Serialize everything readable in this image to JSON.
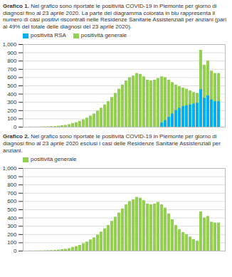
{
  "chart_data": [
    {
      "type": "bar",
      "title": "Grafico 1.",
      "subtitle": "Nel grafico sono riportate le positività COVID-19 in Piemonte per giorno di diagnosi fino al 23 aprile 2020. La parte del diagramma colorata in blu rappresenta il numero di casi positivi riscontrati nelle Residenze Sanitarie Assistenziali per anziani (pari al 49% del totale delle diagnosi del 23 aprile 2020).",
      "categories": [
        null,
        null,
        null,
        null,
        null,
        null,
        null,
        null,
        null,
        null,
        null,
        null,
        null,
        null,
        null,
        null,
        null,
        null,
        null,
        null,
        null,
        null,
        null,
        null,
        null,
        null,
        null,
        null,
        null,
        null,
        null,
        null,
        null,
        null,
        null,
        null,
        null,
        null,
        null,
        null,
        null,
        null,
        null,
        null,
        null,
        null,
        null,
        null,
        null,
        null,
        null,
        null,
        null,
        null
      ],
      "series": [
        {
          "name": "positività RSA",
          "color": "#00b0f0",
          "values": [
            0,
            0,
            0,
            0,
            0,
            0,
            0,
            0,
            0,
            0,
            0,
            0,
            0,
            0,
            0,
            0,
            0,
            0,
            0,
            0,
            0,
            0,
            0,
            0,
            0,
            0,
            0,
            0,
            0,
            0,
            0,
            0,
            0,
            0,
            0,
            0,
            0,
            50,
            80,
            120,
            160,
            200,
            230,
            250,
            260,
            270,
            280,
            290,
            455,
            350,
            380,
            330,
            310,
            310
          ]
        },
        {
          "name": "positività generale",
          "color": "#92d050",
          "values": [
            2,
            1,
            2,
            3,
            4,
            5,
            7,
            8,
            12,
            18,
            22,
            30,
            45,
            55,
            70,
            90,
            110,
            135,
            160,
            195,
            230,
            270,
            310,
            360,
            410,
            460,
            510,
            560,
            600,
            620,
            650,
            640,
            610,
            570,
            560,
            570,
            590,
            610,
            600,
            570,
            540,
            510,
            490,
            475,
            460,
            440,
            420,
            410,
            930,
            750,
            800,
            680,
            650,
            650
          ]
        }
      ],
      "stacked": false,
      "ylim": [
        0,
        1000
      ],
      "yticks": [
        0,
        100,
        200,
        300,
        400,
        500,
        600,
        700,
        800,
        900,
        1000
      ],
      "grid": true,
      "legend": "upper left",
      "tick_labels": "y"
    },
    {
      "type": "bar",
      "title": "Grafico 2.",
      "subtitle": "Nel grafico sono riportate le positività COVID-19 in Piemonte per giorno di diagnosi fino al 23 aprile 2020 esclusi i casi delle Residenze Sanitarie Assistenziali per anziani.",
      "categories": [
        null,
        null,
        null,
        null,
        null,
        null,
        null,
        null,
        null,
        null,
        null,
        null,
        null,
        null,
        null,
        null,
        null,
        null,
        null,
        null,
        null,
        null,
        null,
        null,
        null,
        null,
        null,
        null,
        null,
        null,
        null,
        null,
        null,
        null,
        null,
        null,
        null,
        null,
        null,
        null,
        null,
        null,
        null,
        null,
        null,
        null,
        null,
        null,
        null,
        null,
        null,
        null,
        null,
        null
      ],
      "series": [
        {
          "name": "positività generale",
          "color": "#92d050",
          "values": [
            2,
            1,
            2,
            3,
            4,
            5,
            7,
            8,
            12,
            18,
            22,
            30,
            45,
            55,
            70,
            90,
            110,
            135,
            160,
            195,
            230,
            270,
            310,
            360,
            410,
            460,
            510,
            560,
            600,
            620,
            650,
            640,
            610,
            570,
            560,
            570,
            590,
            560,
            520,
            450,
            380,
            310,
            260,
            225,
            200,
            170,
            140,
            120,
            475,
            400,
            420,
            350,
            340,
            340
          ]
        }
      ],
      "ylim": [
        0,
        1000
      ],
      "yticks": [
        0,
        100,
        200,
        300,
        400,
        500,
        600,
        700,
        800,
        900,
        1000
      ],
      "grid": true,
      "legend": "upper left",
      "tick_labels": "y"
    }
  ]
}
